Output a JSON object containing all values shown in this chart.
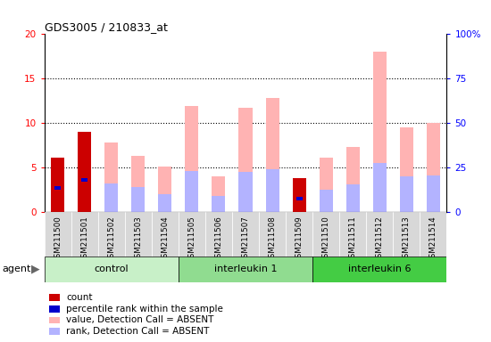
{
  "title": "GDS3005 / 210833_at",
  "samples": [
    "GSM211500",
    "GSM211501",
    "GSM211502",
    "GSM211503",
    "GSM211504",
    "GSM211505",
    "GSM211506",
    "GSM211507",
    "GSM211508",
    "GSM211509",
    "GSM211510",
    "GSM211511",
    "GSM211512",
    "GSM211513",
    "GSM211514"
  ],
  "groups": [
    {
      "name": "control",
      "start": 0,
      "end": 4,
      "color": "#c8f5c8"
    },
    {
      "name": "interleukin 1",
      "start": 5,
      "end": 9,
      "color": "#8edc8e"
    },
    {
      "name": "interleukin 6",
      "start": 10,
      "end": 14,
      "color": "#44cc44"
    }
  ],
  "value_absent": [
    0,
    0,
    7.8,
    6.3,
    5.1,
    11.9,
    4.0,
    11.7,
    12.8,
    0,
    6.1,
    7.3,
    18.0,
    9.5,
    10.0
  ],
  "rank_absent": [
    0,
    0,
    3.2,
    2.8,
    2.0,
    4.6,
    1.8,
    4.5,
    4.8,
    0,
    2.5,
    3.1,
    5.5,
    4.0,
    4.1
  ],
  "count": [
    6.1,
    9.0,
    0,
    0,
    0,
    0,
    0,
    0,
    0,
    3.8,
    0,
    0,
    0,
    0,
    0
  ],
  "percentile": [
    2.7,
    3.6,
    0,
    0,
    0,
    0,
    0,
    0,
    0,
    1.5,
    0,
    0,
    0,
    0,
    0
  ],
  "ylim_left": [
    0,
    20
  ],
  "ylim_right": [
    0,
    100
  ],
  "yticks_left": [
    0,
    5,
    10,
    15,
    20
  ],
  "yticks_right": [
    0,
    25,
    50,
    75,
    100
  ],
  "ytick_labels_right": [
    "0",
    "25",
    "50",
    "75",
    "100%"
  ],
  "color_value_absent": "#ffb3b3",
  "color_rank_absent": "#b3b3ff",
  "color_count": "#cc0000",
  "color_percentile": "#0000cc",
  "bar_width": 0.5,
  "plot_bg": "#ffffff",
  "bar_area_bg": "#e8e8e8",
  "agent_label": "agent"
}
